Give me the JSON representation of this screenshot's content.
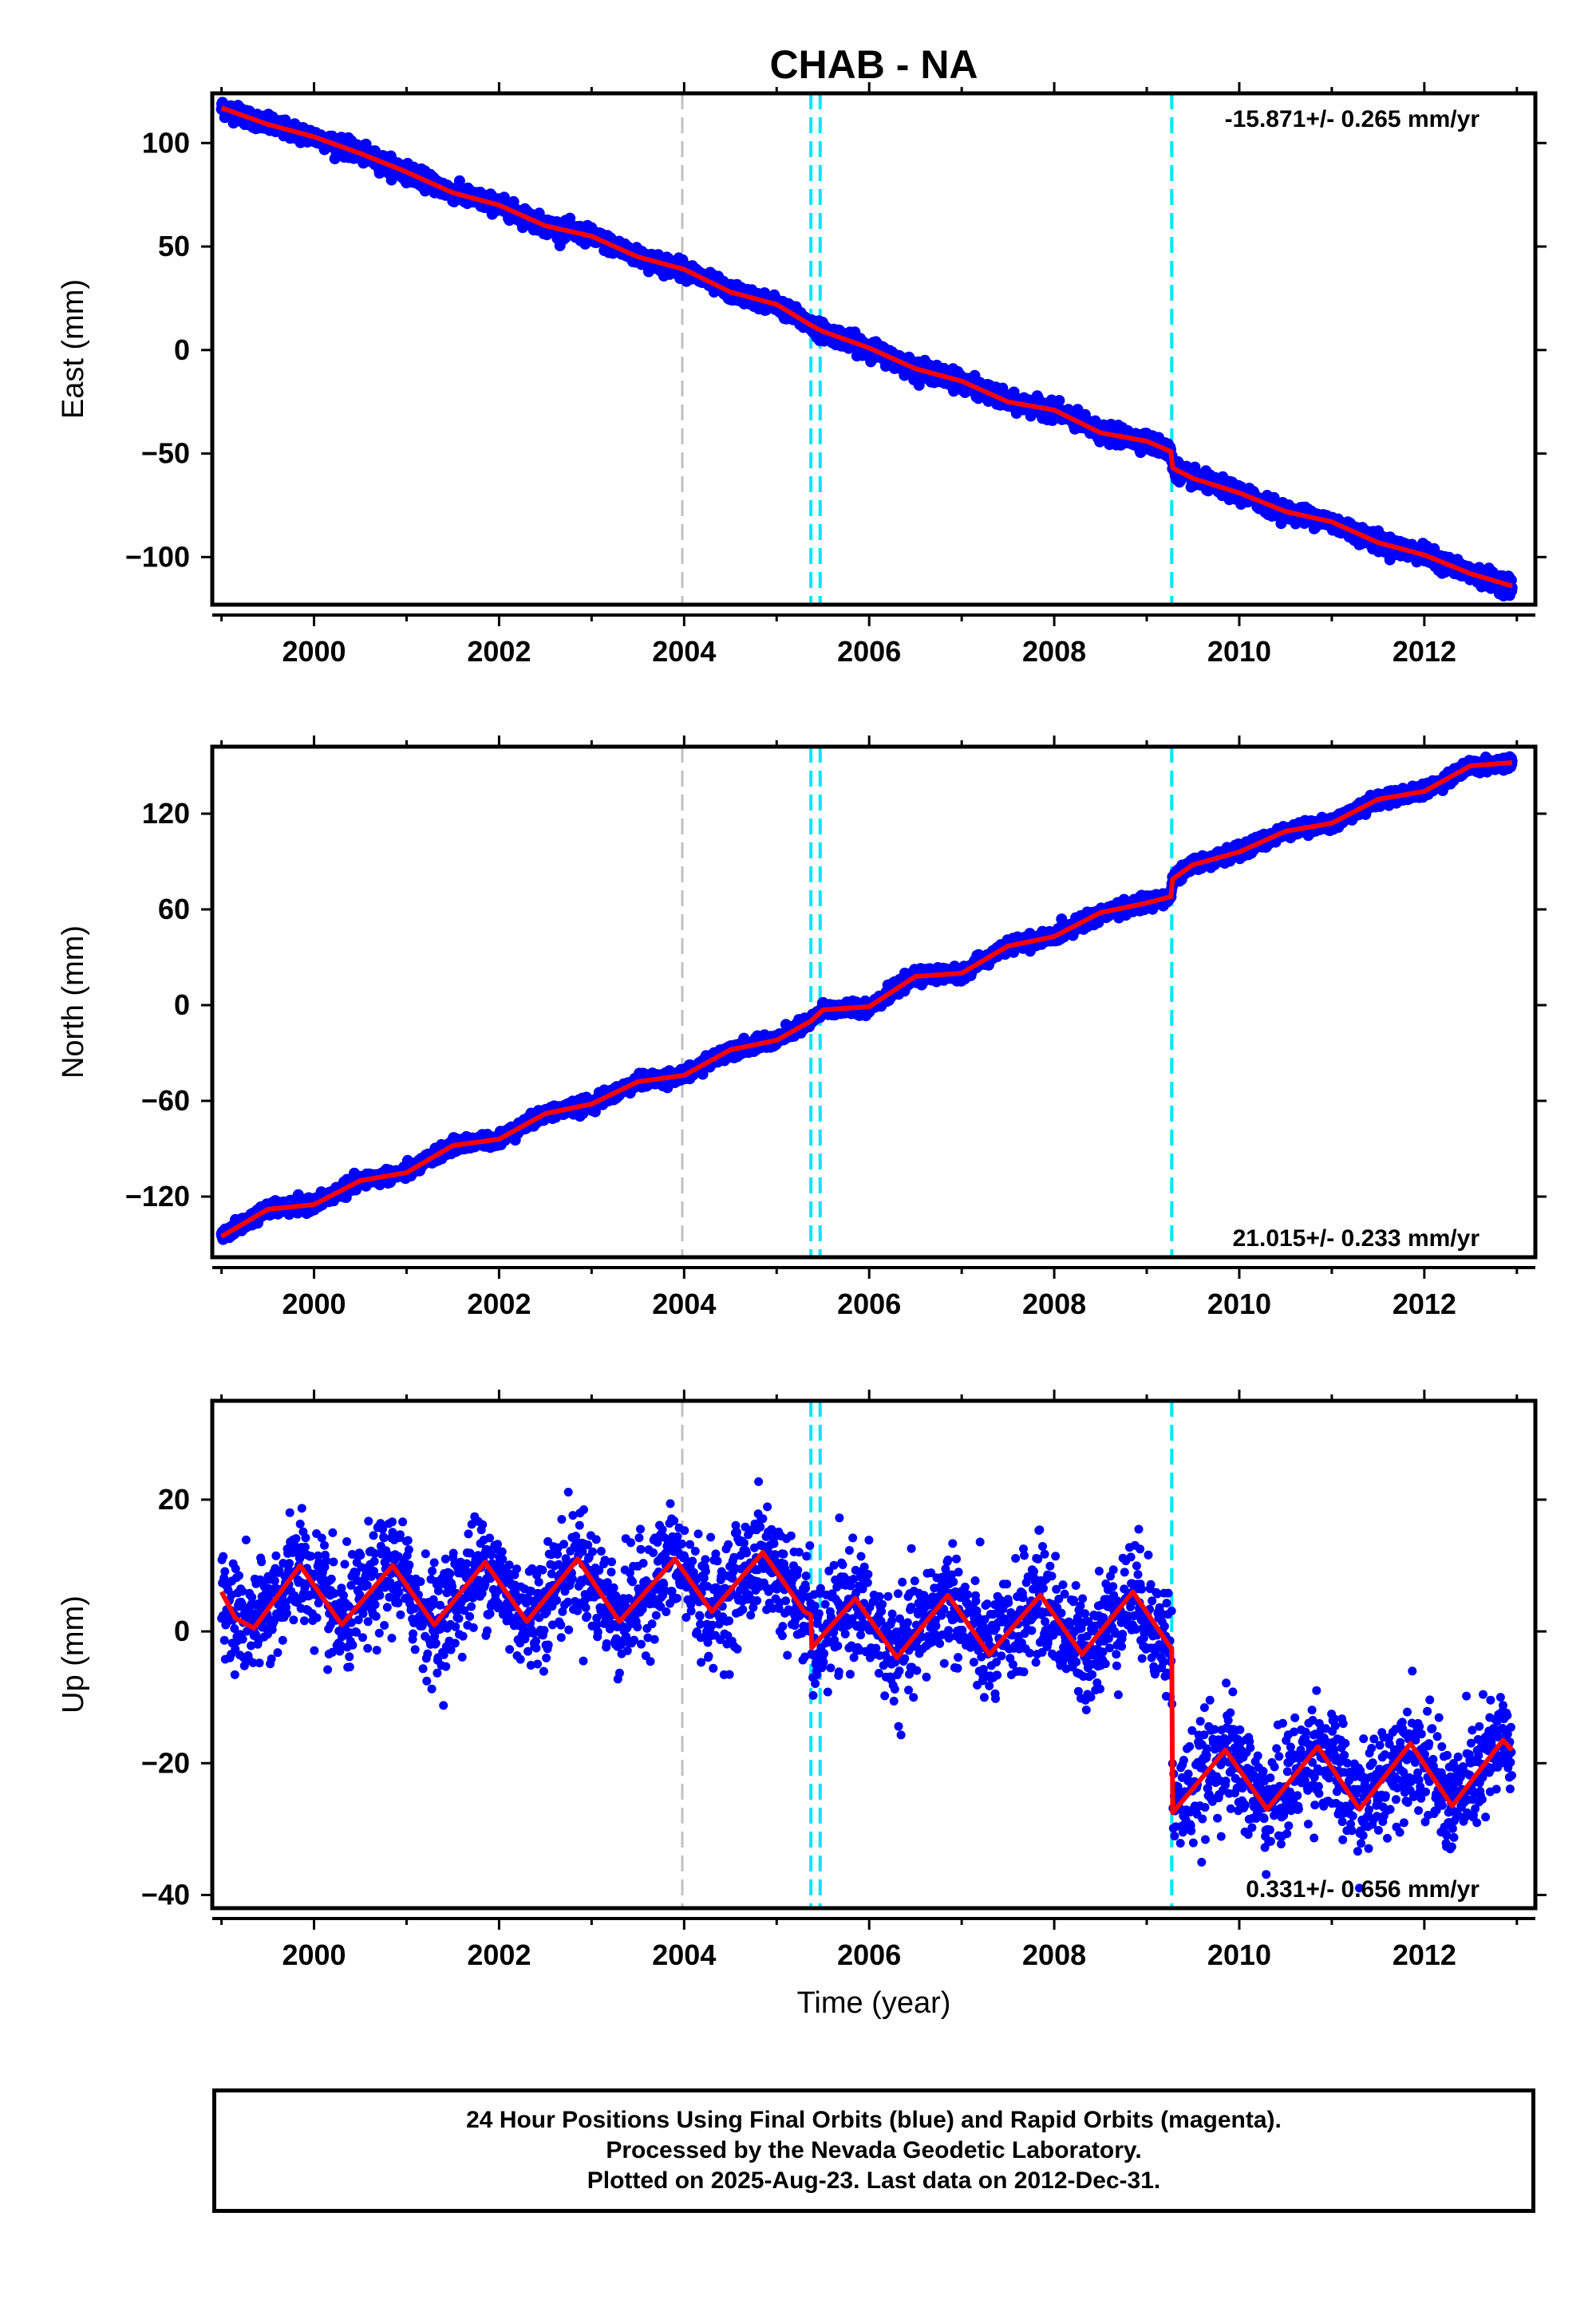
{
  "title": "CHAB - NA",
  "footer": {
    "line1": "24 Hour Positions Using Final Orbits (blue) and Rapid Orbits (magenta).",
    "line2": "Processed by the Nevada Geodetic Laboratory.",
    "line3": "Plotted on 2025-Aug-23. Last data on 2012-Dec-31."
  },
  "colors": {
    "data": "#0000ff",
    "model": "#ff0000",
    "steps": "#00e5ff",
    "event": "#c0c0c0"
  },
  "chart_data": [
    {
      "type": "scatter",
      "ylabel": "East (mm)",
      "xlabel": "",
      "xlim": [
        1998.9,
        2013.2
      ],
      "ylim": [
        -123,
        124
      ],
      "xticks": [
        2000,
        2002,
        2004,
        2006,
        2008,
        2010,
        2012
      ],
      "yticks": [
        100,
        50,
        0,
        -50,
        -100
      ],
      "ytick_labels": [
        "100",
        "50",
        "0",
        "−50",
        "−100"
      ],
      "rate_label": "-15.871+/- 0.265 mm/yr",
      "rate_position": "top-right",
      "event_lines": [
        2003.98
      ],
      "step_lines": [
        2005.37,
        2005.47,
        2009.27
      ],
      "model": {
        "x": [
          1999.0,
          1999.5,
          2000.0,
          2000.5,
          2001.0,
          2001.5,
          2002.0,
          2002.5,
          2003.0,
          2003.5,
          2004.0,
          2004.5,
          2005.0,
          2005.37,
          2005.5,
          2006.0,
          2006.5,
          2007.0,
          2007.5,
          2008.0,
          2008.5,
          2009.0,
          2009.26,
          2009.28,
          2009.5,
          2010.0,
          2010.5,
          2011.0,
          2011.5,
          2012.0,
          2012.5,
          2012.95
        ],
        "y": [
          117,
          109,
          103,
          95,
          86,
          76,
          70,
          60,
          55,
          45,
          39,
          28,
          22,
          12,
          9,
          1,
          -9,
          -15,
          -25,
          -29,
          -40,
          -44,
          -49,
          -57,
          -62,
          -69,
          -78,
          -83,
          -93,
          -99,
          -108,
          -114
        ]
      }
    },
    {
      "type": "scatter",
      "ylabel": "North (mm)",
      "xlabel": "",
      "xlim": [
        1998.9,
        2013.2
      ],
      "ylim": [
        -158,
        162
      ],
      "xticks": [
        2000,
        2002,
        2004,
        2006,
        2008,
        2010,
        2012
      ],
      "yticks": [
        120,
        60,
        0,
        -60,
        -120
      ],
      "ytick_labels": [
        "120",
        "60",
        "0",
        "−60",
        "−120"
      ],
      "rate_label": "21.015+/- 0.233 mm/yr",
      "rate_position": "bottom-right",
      "event_lines": [
        2003.98
      ],
      "step_lines": [
        2005.37,
        2005.47,
        2009.27
      ],
      "model": {
        "x": [
          1999.0,
          1999.5,
          2000.0,
          2000.5,
          2001.0,
          2001.5,
          2002.0,
          2002.5,
          2003.0,
          2003.5,
          2004.0,
          2004.5,
          2005.0,
          2005.37,
          2005.5,
          2006.0,
          2006.5,
          2007.0,
          2007.5,
          2008.0,
          2008.5,
          2009.0,
          2009.26,
          2009.28,
          2009.5,
          2010.0,
          2010.5,
          2011.0,
          2011.5,
          2012.0,
          2012.5,
          2012.95
        ],
        "y": [
          -145,
          -128,
          -125,
          -110,
          -105,
          -88,
          -84,
          -68,
          -62,
          -48,
          -44,
          -28,
          -22,
          -10,
          -3,
          -1,
          18,
          20,
          37,
          43,
          58,
          64,
          68,
          79,
          88,
          96,
          109,
          114,
          129,
          134,
          150,
          152
        ]
      }
    },
    {
      "type": "scatter",
      "ylabel": "Up (mm)",
      "xlabel": "Time (year)",
      "xlim": [
        1998.9,
        2013.2
      ],
      "ylim": [
        -42,
        35
      ],
      "xticks": [
        2000,
        2002,
        2004,
        2006,
        2008,
        2010,
        2012
      ],
      "yticks": [
        20,
        0,
        -20,
        -40
      ],
      "ytick_labels": [
        "20",
        "0",
        "−20",
        "−40"
      ],
      "rate_label": "0.331+/- 0.656 mm/yr",
      "rate_position": "bottom-right",
      "event_lines": [
        2003.98
      ],
      "step_lines": [
        2005.37,
        2005.47,
        2009.27
      ],
      "seasonal_amplitude_mm": 4.5,
      "model": {
        "x": [
          1999.0,
          1999.15,
          1999.35,
          1999.85,
          2000.3,
          2000.85,
          2001.3,
          2001.85,
          2002.3,
          2002.85,
          2003.3,
          2003.9,
          2004.3,
          2004.85,
          2005.3,
          2005.37,
          2005.38,
          2005.85,
          2006.3,
          2006.85,
          2007.3,
          2007.85,
          2008.3,
          2008.85,
          2009.26,
          2009.27,
          2009.28,
          2009.85,
          2010.3,
          2010.85,
          2011.3,
          2011.85,
          2012.3,
          2012.85,
          2012.95
        ],
        "y": [
          6,
          2,
          0.5,
          10,
          1,
          10,
          1,
          10.5,
          1.5,
          11,
          1.5,
          11,
          3,
          12,
          3,
          2.5,
          -2.5,
          5,
          -4,
          5.5,
          -3.5,
          5.5,
          -3.5,
          6,
          -2.5,
          -2.5,
          -27.5,
          -18,
          -27,
          -17.5,
          -27,
          -17,
          -26.5,
          -16.5,
          -18
        ]
      }
    }
  ]
}
